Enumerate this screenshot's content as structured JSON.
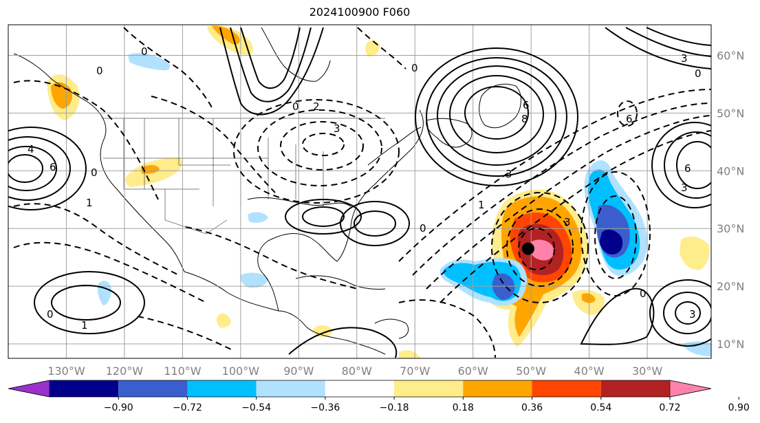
{
  "title": "2024100900 F060",
  "map": {
    "lon_range": [
      -140,
      -19
    ],
    "lat_range": [
      7.5,
      65.3
    ],
    "lon_ticks": [
      {
        "value": -130,
        "label": "130°W"
      },
      {
        "value": -120,
        "label": "120°W"
      },
      {
        "value": -110,
        "label": "110°W"
      },
      {
        "value": -100,
        "label": "100°W"
      },
      {
        "value": -90,
        "label": "90°W"
      },
      {
        "value": -80,
        "label": "80°W"
      },
      {
        "value": -70,
        "label": "70°W"
      },
      {
        "value": -60,
        "label": "60°W"
      },
      {
        "value": -50,
        "label": "50°W"
      },
      {
        "value": -40,
        "label": "40°W"
      },
      {
        "value": -30,
        "label": "30°W"
      }
    ],
    "lat_ticks": [
      {
        "value": 10,
        "label": "10°N"
      },
      {
        "value": 20,
        "label": "20°N"
      },
      {
        "value": 30,
        "label": "30°N"
      },
      {
        "value": 40,
        "label": "40°N"
      },
      {
        "value": 50,
        "label": "50°N"
      },
      {
        "value": 60,
        "label": "60°N"
      }
    ],
    "gridlines": true,
    "storm_marker": {
      "lon": -50.5,
      "lat": 26.5
    }
  },
  "colorbar": {
    "levels": [
      "−0.90",
      "−0.72",
      "−0.54",
      "−0.36",
      "−0.18",
      "0.18",
      "0.36",
      "0.54",
      "0.72",
      "0.90"
    ],
    "colors": [
      "#9932cc",
      "#00008b",
      "#3a5fcd",
      "#00bfff",
      "#b0e2ff",
      "#ffffff",
      "#ffec8b",
      "#ffa500",
      "#ff4500",
      "#b22222",
      "#ff82ab"
    ],
    "extend": "both"
  },
  "contour_labels": [
    "0",
    "1",
    "2",
    "3",
    "4",
    "6",
    "8"
  ]
}
